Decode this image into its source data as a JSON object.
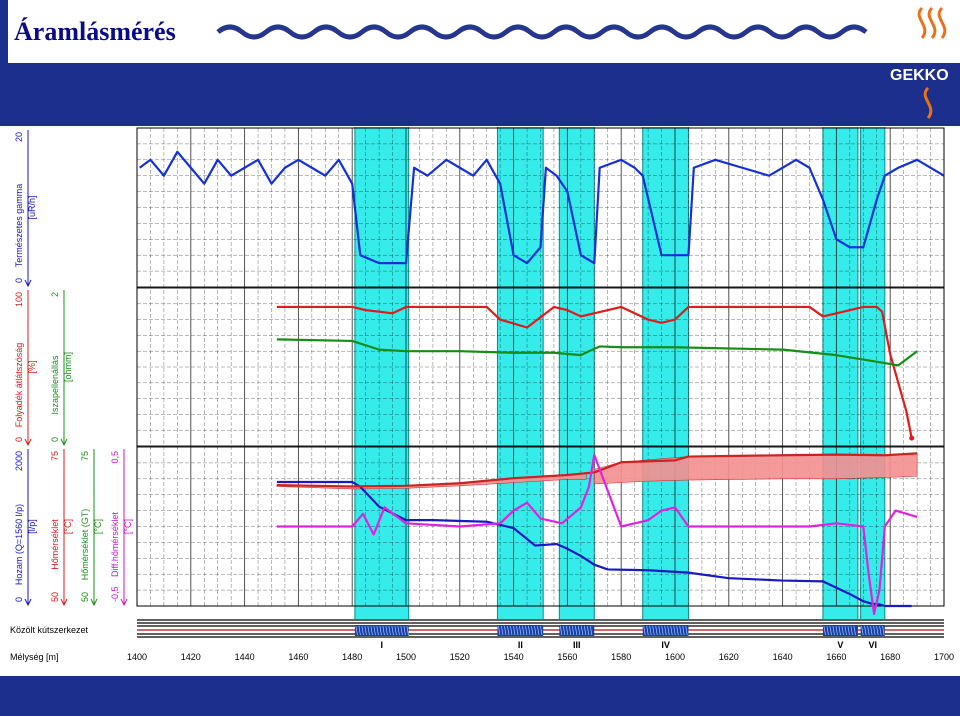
{
  "slide": {
    "title": "Áramlásmérés",
    "logo_text": "GEKKO",
    "colors": {
      "title": "#0a0a8a",
      "banner": "#1c2f8c",
      "wave": "#24368e",
      "logo": "#e9711c"
    }
  },
  "chart_data": {
    "type": "line",
    "depth_axis": {
      "label": "Mélység [m]",
      "ticks": [
        1400,
        1420,
        1440,
        1460,
        1480,
        1500,
        1520,
        1540,
        1560,
        1580,
        1600,
        1620,
        1640,
        1660,
        1680,
        1700
      ],
      "range": [
        1400,
        1700
      ]
    },
    "completion_label": "Közölt kútszerkezet",
    "zones": [
      {
        "label": "I",
        "from": 1481,
        "to": 1501
      },
      {
        "label": "II",
        "from": 1534,
        "to": 1551
      },
      {
        "label": "III",
        "from": 1557,
        "to": 1570
      },
      {
        "label": "IV",
        "from": 1588,
        "to": 1605
      },
      {
        "label": "V",
        "from": 1655,
        "to": 1668
      },
      {
        "label": "VI",
        "from": 1669,
        "to": 1678
      }
    ],
    "panels": [
      {
        "tracks": [
          {
            "name": "Természetes gamma",
            "unit": "[uR/h]",
            "min": "0",
            "max": "20",
            "color": "#1515c8"
          }
        ],
        "series": [
          {
            "name": "Természetes gamma",
            "color": "#1530d8",
            "range": [
              0,
              20
            ],
            "x": [
              1401,
              1405,
              1410,
              1415,
              1420,
              1425,
              1430,
              1435,
              1440,
              1445,
              1450,
              1455,
              1460,
              1465,
              1470,
              1475,
              1480,
              1483,
              1490,
              1500,
              1503,
              1508,
              1515,
              1520,
              1525,
              1530,
              1535,
              1540,
              1545,
              1550,
              1552,
              1556,
              1560,
              1565,
              1570,
              1572,
              1580,
              1585,
              1588,
              1595,
              1605,
              1607,
              1615,
              1625,
              1635,
              1645,
              1650,
              1655,
              1660,
              1665,
              1670,
              1675,
              1678,
              1683,
              1690,
              1700
            ],
            "y": [
              15,
              16,
              14,
              17,
              15,
              13,
              16,
              14,
              15,
              16,
              13,
              15,
              16,
              15,
              14,
              16,
              13,
              4,
              3,
              3,
              15,
              14,
              16,
              15,
              14,
              16,
              13,
              4,
              3,
              5,
              15,
              14,
              12,
              4,
              3,
              15,
              16,
              15,
              14,
              4,
              4,
              15,
              16,
              15,
              14,
              16,
              15,
              11,
              6,
              5,
              5,
              11,
              14,
              15,
              16,
              14
            ]
          }
        ]
      },
      {
        "tracks": [
          {
            "name": "Folyadék átlátszóság",
            "unit": "[%]",
            "min": "0",
            "max": "100",
            "color": "#d61c1c"
          },
          {
            "name": "Iszapellenállás",
            "unit": "[ohmm]",
            "min": "0",
            "max": "2",
            "color": "#189018"
          }
        ],
        "series": [
          {
            "name": "Folyadék átlátszóság",
            "color": "#e01b1b",
            "range": [
              0,
              100
            ],
            "x": [
              1452,
              1480,
              1485,
              1495,
              1500,
              1530,
              1535,
              1545,
              1555,
              1560,
              1565,
              1570,
              1580,
              1585,
              1590,
              1595,
              1600,
              1605,
              1650,
              1655,
              1660,
              1670,
              1675,
              1677,
              1680,
              1683,
              1686,
              1688
            ],
            "y": [
              88,
              88,
              86,
              84,
              88,
              88,
              80,
              75,
              88,
              86,
              82,
              84,
              88,
              84,
              80,
              78,
              80,
              88,
              88,
              82,
              84,
              88,
              88,
              85,
              58,
              40,
              22,
              5
            ]
          },
          {
            "name": "Iszapellenállás",
            "color": "#178c17",
            "range": [
              0,
              2
            ],
            "x": [
              1452,
              1480,
              1490,
              1500,
              1520,
              1540,
              1555,
              1565,
              1568,
              1572,
              1580,
              1600,
              1640,
              1660,
              1678,
              1683,
              1690
            ],
            "y": [
              1.35,
              1.33,
              1.22,
              1.2,
              1.2,
              1.18,
              1.18,
              1.15,
              1.2,
              1.26,
              1.25,
              1.25,
              1.22,
              1.15,
              1.05,
              1.02,
              1.2
            ]
          }
        ]
      },
      {
        "tracks": [
          {
            "name": "Hozam (Q=1560 l/p)",
            "unit": "[l/p]",
            "min": "0",
            "max": "2000",
            "color": "#1515c8"
          },
          {
            "name": "Hőmérséklet",
            "unit": "[°C]",
            "min": "50",
            "max": "75",
            "color": "#d61c1c"
          },
          {
            "name": "Hőmérséklet (GT)",
            "unit": "[°C]",
            "min": "50",
            "max": "75",
            "color": "#189018"
          },
          {
            "name": "Diff.hőmérséklet",
            "unit": "[°C]",
            "min": "-0,5",
            "max": "0,5",
            "color": "#c718c7"
          }
        ],
        "series": [
          {
            "name": "Hozam (Q=1560 l/p)",
            "color": "#1a1ac0",
            "range": [
              0,
              2000
            ],
            "x": [
              1452,
              1480,
              1483,
              1490,
              1500,
              1510,
              1530,
              1540,
              1548,
              1556,
              1560,
              1565,
              1570,
              1575,
              1590,
              1605,
              1620,
              1640,
              1655,
              1660,
              1665,
              1670,
              1673,
              1676,
              1678,
              1688
            ],
            "y": [
              1560,
              1560,
              1500,
              1250,
              1080,
              1080,
              1060,
              980,
              760,
              780,
              720,
              630,
              520,
              460,
              450,
              420,
              350,
              320,
              310,
              230,
              150,
              60,
              30,
              20,
              0,
              0
            ]
          },
          {
            "name": "Hőmérséklet",
            "color": "#cc2222",
            "range": [
              50,
              75
            ],
            "x": [
              1452,
              1480,
              1500,
              1520,
              1540,
              1560,
              1570,
              1580,
              1600,
              1605,
              1640,
              1660,
              1678,
              1690
            ],
            "y": [
              69,
              68.8,
              68.9,
              69.3,
              70.1,
              70.6,
              71,
              72.6,
              72.9,
              73.5,
              73.7,
              73.8,
              73.7,
              74
            ]
          },
          {
            "name": "Diff.hőmérséklet",
            "color": "#e022e0",
            "range": [
              -0.5,
              0.5
            ],
            "x": [
              1452,
              1480,
              1484,
              1488,
              1492,
              1500,
              1520,
              1535,
              1540,
              1545,
              1550,
              1558,
              1565,
              1568,
              1570,
              1580,
              1590,
              1595,
              1600,
              1605,
              1650,
              1660,
              1670,
              1672,
              1674,
              1676,
              1678,
              1682,
              1690
            ],
            "y": [
              0,
              0,
              0.08,
              -0.05,
              0.12,
              0.02,
              0,
              0.02,
              0.1,
              0.15,
              0.05,
              0.02,
              0.12,
              0.25,
              0.45,
              0,
              0.04,
              0.1,
              0.12,
              0,
              0,
              0.02,
              0,
              -0.3,
              -0.55,
              -0.4,
              0,
              0.1,
              0.06
            ]
          }
        ],
        "band": {
          "name": "Hőmérséklet (GT)",
          "color": "#f59090",
          "range": [
            50,
            75
          ],
          "segments": [
            {
              "x": [
                1452,
                1480,
                1500,
                1520,
                1540,
                1560,
                1567
              ],
              "lo": [
                68.8,
                68.4,
                68.5,
                68.9,
                69.4,
                69.9,
                69.9
              ],
              "hi": [
                69,
                68.8,
                68.9,
                69.3,
                70.1,
                70.6,
                71
              ]
            },
            {
              "x": [
                1570,
                1580,
                1588,
                1605,
                1640,
                1660,
                1668,
                1678,
                1690
              ],
              "lo": [
                69.2,
                69.4,
                69.6,
                69.8,
                70.0,
                70.0,
                70.1,
                70.2,
                70.4
              ],
              "hi": [
                71.5,
                72.6,
                72.9,
                73.5,
                73.7,
                73.8,
                73.8,
                73.7,
                74
              ]
            }
          ]
        }
      }
    ]
  }
}
